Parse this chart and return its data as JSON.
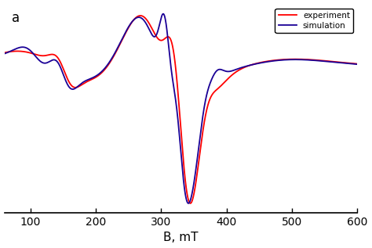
{
  "title_label": "a",
  "xlabel": "B, mT",
  "xlim": [
    60,
    600
  ],
  "xticks": [
    100,
    200,
    300,
    400,
    500,
    600
  ],
  "exp_color": "#FF0000",
  "sim_color": "#1a0096",
  "exp_label": "experiment",
  "sim_label": "simulation",
  "linewidth": 1.3,
  "background_color": "#FFFFFF"
}
